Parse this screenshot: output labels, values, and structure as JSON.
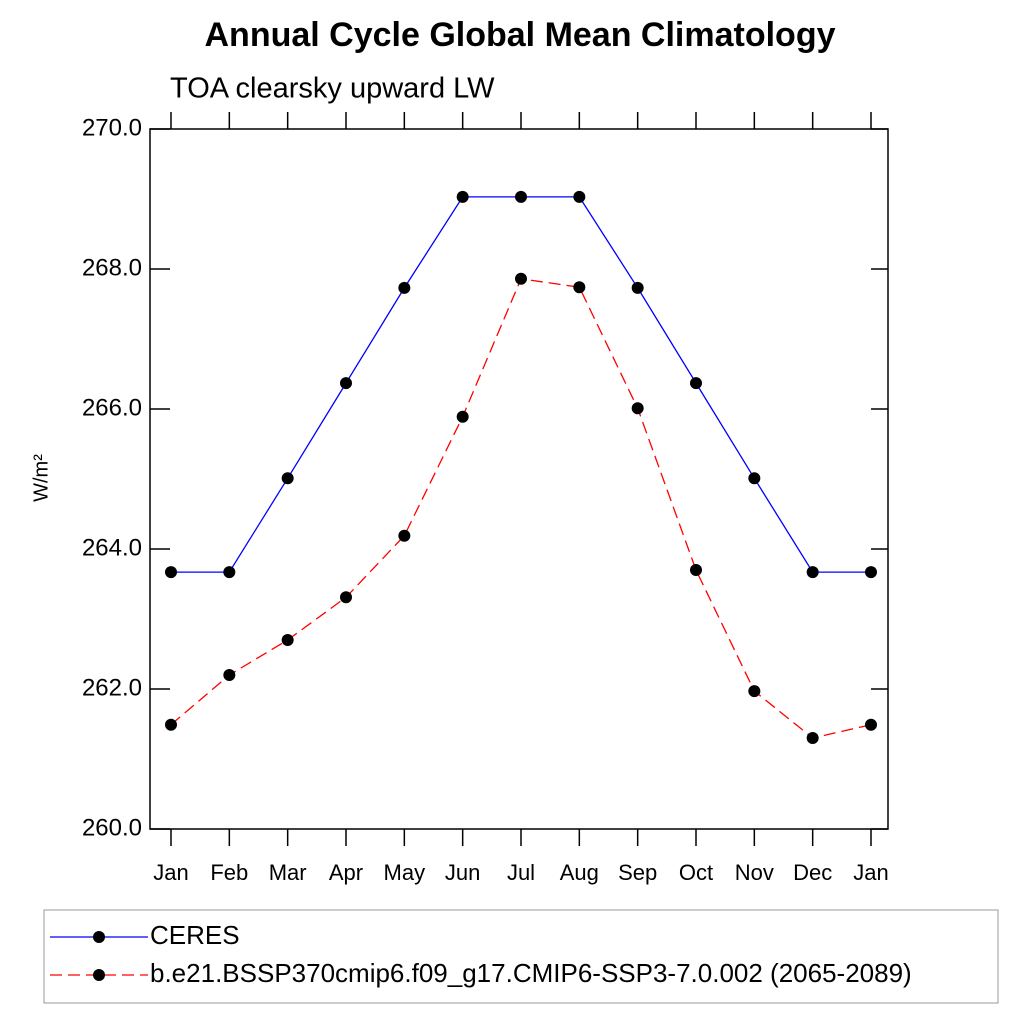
{
  "chart_data": {
    "type": "line",
    "title": "Annual Cycle Global Mean Climatology",
    "subtitle": "TOA clearsky upward LW",
    "y_label": "W/m²",
    "categories": [
      "Jan",
      "Feb",
      "Mar",
      "Apr",
      "May",
      "Jun",
      "Jul",
      "Aug",
      "Sep",
      "Oct",
      "Nov",
      "Dec",
      "Jan"
    ],
    "series": [
      {
        "name": "CERES",
        "color": "#0000ff",
        "linestyle": "solid",
        "values": [
          263.67,
          263.67,
          265.01,
          266.37,
          267.73,
          269.03,
          269.03,
          269.03,
          267.73,
          266.37,
          265.01,
          263.67,
          263.67
        ]
      },
      {
        "name": "b.e21.BSSP370cmip6.f09_g17.CMIP6-SSP3-7.0.002 (2065-2089)",
        "color": "#ff0000",
        "linestyle": "dashed",
        "values": [
          261.49,
          262.2,
          262.7,
          263.31,
          264.19,
          265.89,
          267.86,
          267.74,
          266.01,
          263.7,
          261.97,
          261.3,
          261.49
        ]
      }
    ],
    "ylim": [
      260,
      270
    ],
    "yticks": [
      {
        "value": 260,
        "label": "260.0"
      },
      {
        "value": 262,
        "label": "262.0"
      },
      {
        "value": 264,
        "label": "264.0"
      },
      {
        "value": 266,
        "label": "266.0"
      },
      {
        "value": 268,
        "label": "268.0"
      },
      {
        "value": 270,
        "label": "270.0"
      }
    ],
    "grid": false,
    "legend": "bottom"
  }
}
